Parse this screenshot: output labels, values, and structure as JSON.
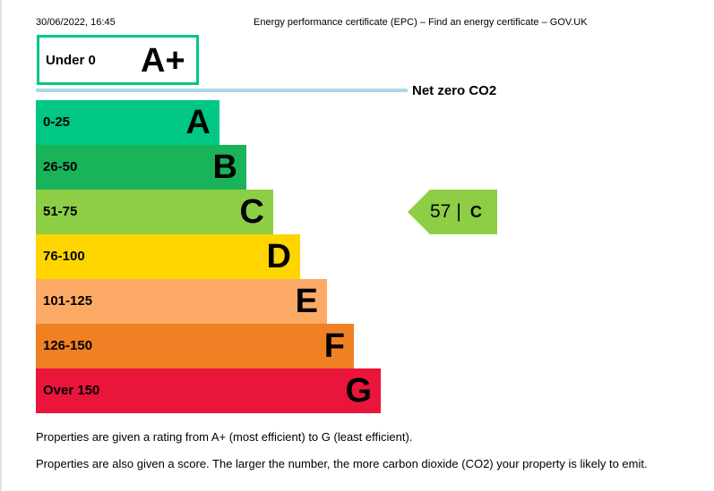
{
  "header": {
    "date": "30/06/2022, 16:45",
    "title": "Energy performance certificate (EPC) – Find an energy certificate – GOV.UK"
  },
  "top_band": {
    "range": "Under 0",
    "letter": "A+",
    "color": "#00c781"
  },
  "net_zero": {
    "label": "Net zero CO2",
    "color": "#add8e6"
  },
  "bands": [
    {
      "range": "0-25",
      "letter": "A",
      "color": "#00c781"
    },
    {
      "range": "26-50",
      "letter": "B",
      "color": "#19b459"
    },
    {
      "range": "51-75",
      "letter": "C",
      "color": "#8dce46"
    },
    {
      "range": "76-100",
      "letter": "D",
      "color": "#ffd500"
    },
    {
      "range": "101-125",
      "letter": "E",
      "color": "#fcaa65"
    },
    {
      "range": "126-150",
      "letter": "F",
      "color": "#ef8023"
    },
    {
      "range": "Over 150",
      "letter": "G",
      "color": "#e9153b"
    }
  ],
  "score": {
    "value": "57",
    "separator": "|",
    "letter": "C",
    "color": "#8dce46"
  },
  "notes": [
    "Properties are given a rating from A+ (most efficient) to G (least efficient).",
    "Properties are also given a score. The larger the number, the more carbon dioxide (CO2) your property is likely to emit."
  ]
}
